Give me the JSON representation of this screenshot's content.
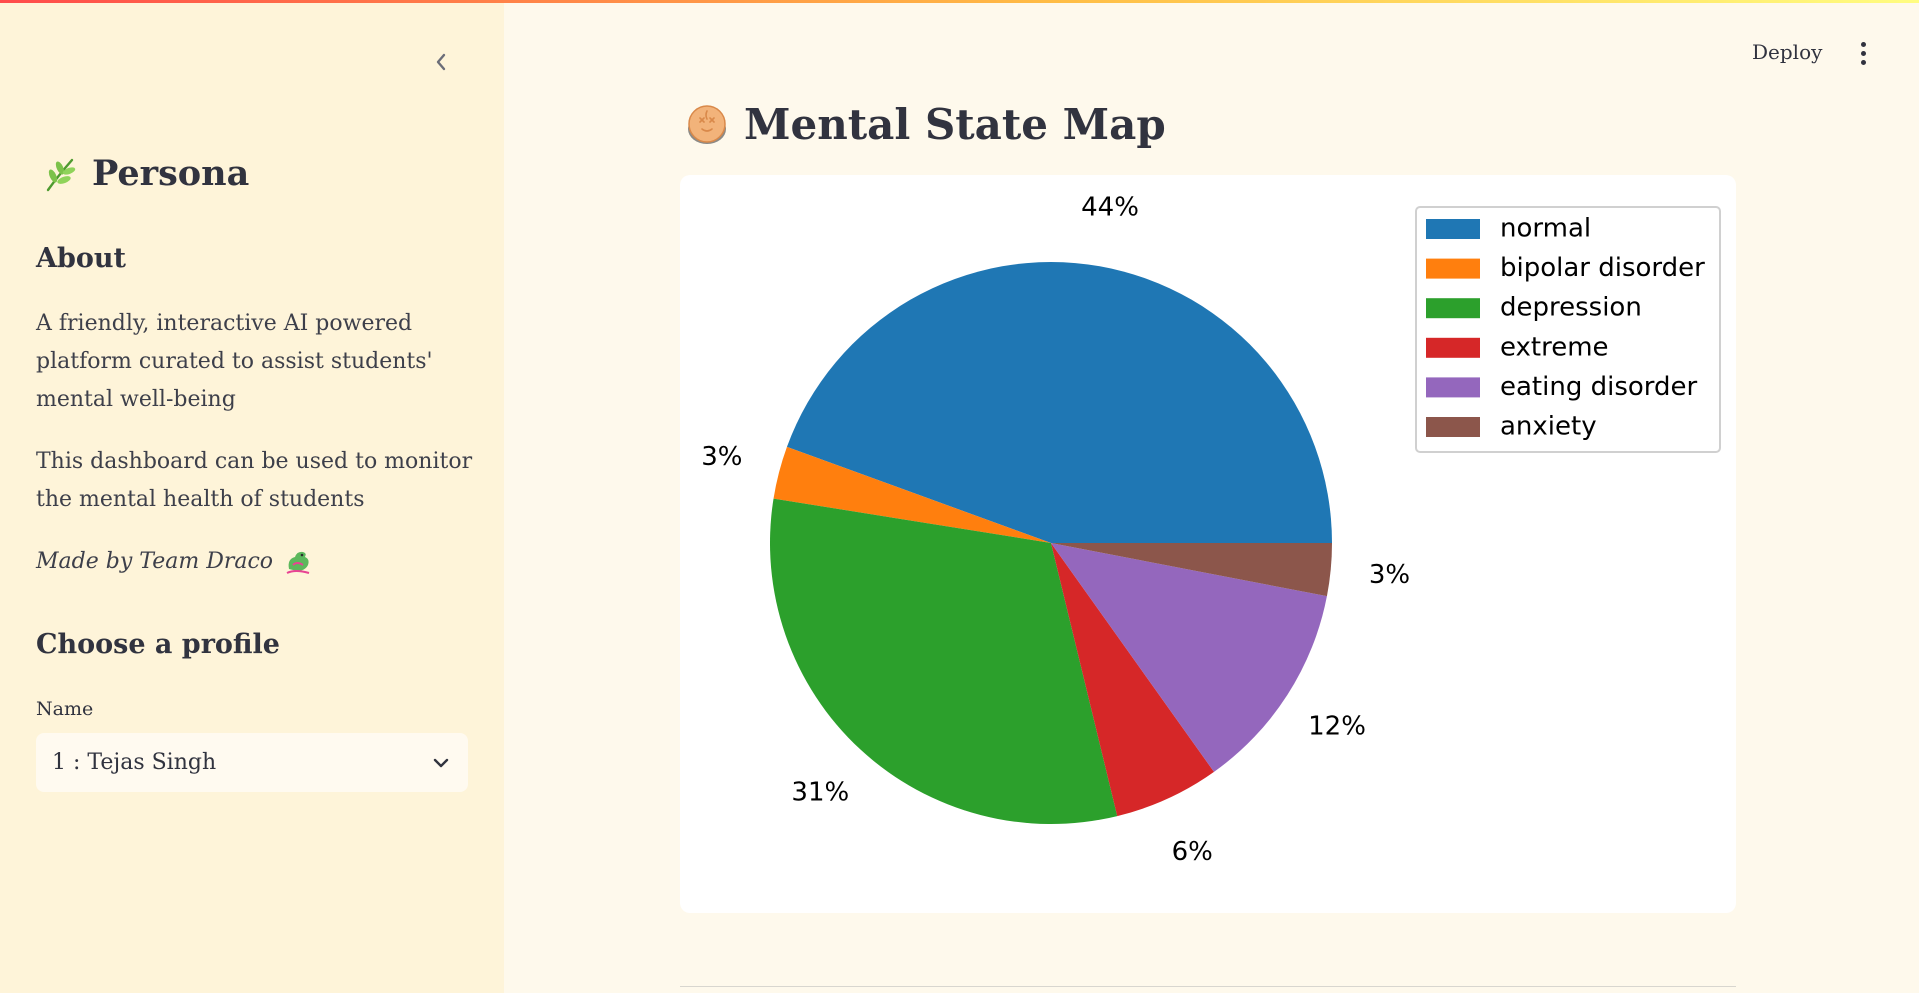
{
  "header": {
    "deploy_label": "Deploy"
  },
  "sidebar": {
    "title": "Persona",
    "about_heading": "About",
    "about_text_1": "A friendly, interactive AI powered platform curated to assist students' mental well-being",
    "about_text_2": "This dashboard can be used to monitor the mental health of students",
    "credit": "Made by Team Draco",
    "profile_heading": "Choose a profile",
    "name_label": "Name",
    "selected_profile": "1 : Tejas Singh"
  },
  "main": {
    "title": "Mental State Map"
  },
  "chart_data": {
    "type": "pie",
    "title": "",
    "slices": [
      {
        "label": "normal",
        "value": 44,
        "display": "44%",
        "color": "#1f77b4"
      },
      {
        "label": "bipolar disorder",
        "value": 3,
        "display": "3%",
        "color": "#ff7f0e"
      },
      {
        "label": "depression",
        "value": 31,
        "display": "31%",
        "color": "#2ca02c"
      },
      {
        "label": "extreme",
        "value": 6,
        "display": "6%",
        "color": "#d62728"
      },
      {
        "label": "eating disorder",
        "value": 12,
        "display": "12%",
        "color": "#9467bd"
      },
      {
        "label": "anxiety",
        "value": 3,
        "display": "3%",
        "color": "#8c564b"
      }
    ],
    "start_angle": "east, counter-clockwise",
    "legend_position": "top-right"
  }
}
